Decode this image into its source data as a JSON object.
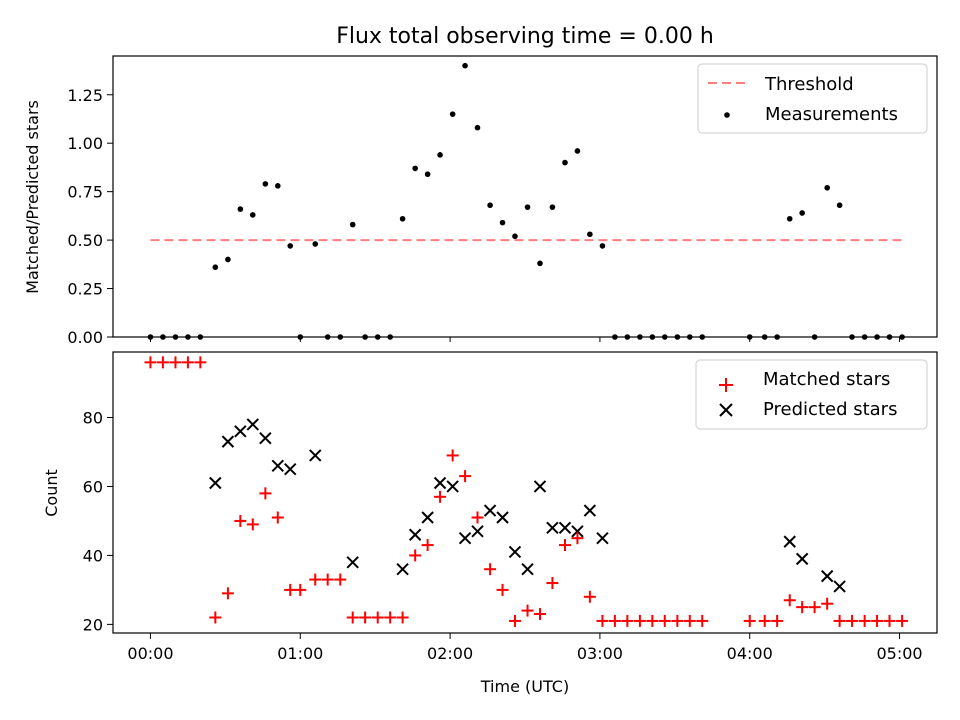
{
  "title": "Flux total observing time = 0.00 h",
  "colors": {
    "threshold": "#ff7f7f",
    "matched": "#ff0000",
    "predicted": "#000000",
    "measure": "#000000"
  },
  "chart_data": [
    {
      "type": "scatter",
      "panel": "top",
      "ylabel": "Matched/Predicted stars",
      "xlim": [
        -0.25,
        5.25
      ],
      "ylim": [
        0,
        1.45
      ],
      "yticks": [
        0.0,
        0.25,
        0.5,
        0.75,
        1.0,
        1.25
      ],
      "ytick_labels": [
        "0.00",
        "0.25",
        "0.50",
        "0.75",
        "1.00",
        "1.25"
      ],
      "grid": false,
      "legend_position": "top-right",
      "legend": [
        "Threshold",
        "Measurements"
      ],
      "threshold": {
        "name": "Threshold",
        "x": [
          0.0,
          5.02
        ],
        "y": 0.5
      },
      "series": [
        {
          "name": "Measurements",
          "x": [
            0.0,
            0.083,
            0.167,
            0.25,
            0.333,
            0.433,
            0.517,
            0.6,
            0.683,
            0.767,
            0.85,
            0.933,
            1.0,
            1.1,
            1.183,
            1.267,
            1.35,
            1.433,
            1.517,
            1.6,
            1.683,
            1.767,
            1.85,
            1.933,
            2.017,
            2.1,
            2.183,
            2.267,
            2.35,
            2.433,
            2.517,
            2.6,
            2.683,
            2.767,
            2.85,
            2.933,
            3.017,
            3.1,
            3.183,
            3.267,
            3.35,
            3.433,
            3.517,
            3.6,
            3.683,
            4.0,
            4.1,
            4.183,
            4.267,
            4.35,
            4.433,
            4.517,
            4.6,
            4.683,
            4.767,
            4.85,
            4.933,
            5.017
          ],
          "y": [
            0.0,
            0.0,
            0.0,
            0.0,
            0.0,
            0.36,
            0.4,
            0.66,
            0.63,
            0.79,
            0.78,
            0.47,
            0.0,
            0.48,
            0.0,
            0.0,
            0.58,
            0.0,
            0.0,
            0.0,
            0.61,
            0.87,
            0.84,
            0.94,
            1.15,
            1.4,
            1.08,
            0.68,
            0.59,
            0.52,
            0.67,
            0.38,
            0.67,
            0.9,
            0.96,
            0.53,
            0.47,
            0.0,
            0.0,
            0.0,
            0.0,
            0.0,
            0.0,
            0.0,
            0.0,
            0.0,
            0.0,
            0.0,
            0.61,
            0.64,
            0.0,
            0.77,
            0.68,
            0.0,
            0.0,
            0.0,
            0.0,
            0.0
          ]
        }
      ]
    },
    {
      "type": "scatter",
      "panel": "bottom",
      "xlabel": "Time (UTC)",
      "ylabel": "Count",
      "xlim": [
        -0.25,
        5.25
      ],
      "ylim": [
        17.5,
        99
      ],
      "xticks": [
        0,
        1,
        2,
        3,
        4,
        5
      ],
      "xtick_labels": [
        "00:00",
        "01:00",
        "02:00",
        "03:00",
        "04:00",
        "05:00"
      ],
      "yticks": [
        20,
        40,
        60,
        80
      ],
      "ytick_labels": [
        "20",
        "40",
        "60",
        "80"
      ],
      "grid": false,
      "legend_position": "top-right",
      "legend": [
        "Matched stars",
        "Predicted stars"
      ],
      "series": [
        {
          "name": "Matched stars",
          "marker": "plus",
          "x": [
            0.0,
            0.083,
            0.167,
            0.25,
            0.333,
            0.433,
            0.517,
            0.6,
            0.683,
            0.767,
            0.85,
            0.933,
            1.0,
            1.1,
            1.183,
            1.267,
            1.35,
            1.433,
            1.517,
            1.6,
            1.683,
            1.767,
            1.85,
            1.933,
            2.017,
            2.1,
            2.183,
            2.267,
            2.35,
            2.433,
            2.517,
            2.6,
            2.683,
            2.767,
            2.85,
            2.933,
            3.017,
            3.1,
            3.183,
            3.267,
            3.35,
            3.433,
            3.517,
            3.6,
            3.683,
            4.0,
            4.1,
            4.183,
            4.267,
            4.35,
            4.433,
            4.517,
            4.6,
            4.683,
            4.767,
            4.85,
            4.933,
            5.017
          ],
          "y": [
            96,
            96,
            96,
            96,
            96,
            22,
            29,
            50,
            49,
            58,
            51,
            30,
            30,
            33,
            33,
            33,
            22,
            22,
            22,
            22,
            22,
            40,
            43,
            57,
            69,
            63,
            51,
            36,
            30,
            21,
            24,
            23,
            32,
            43,
            45,
            28,
            21,
            21,
            21,
            21,
            21,
            21,
            21,
            21,
            21,
            21,
            21,
            21,
            27,
            25,
            25,
            26,
            21,
            21,
            21,
            21,
            21,
            21
          ]
        },
        {
          "name": "Predicted stars",
          "marker": "x",
          "x": [
            0.433,
            0.517,
            0.6,
            0.683,
            0.767,
            0.85,
            0.933,
            1.1,
            1.35,
            1.683,
            1.767,
            1.85,
            1.933,
            2.017,
            2.1,
            2.183,
            2.267,
            2.35,
            2.433,
            2.517,
            2.6,
            2.683,
            2.767,
            2.85,
            2.933,
            3.017,
            4.267,
            4.35,
            4.517,
            4.6
          ],
          "y": [
            61,
            73,
            76,
            78,
            74,
            66,
            65,
            69,
            38,
            36,
            46,
            51,
            61,
            60,
            45,
            47,
            53,
            51,
            41,
            36,
            60,
            48,
            48,
            47,
            53,
            45,
            44,
            39,
            34,
            31
          ]
        }
      ]
    }
  ]
}
